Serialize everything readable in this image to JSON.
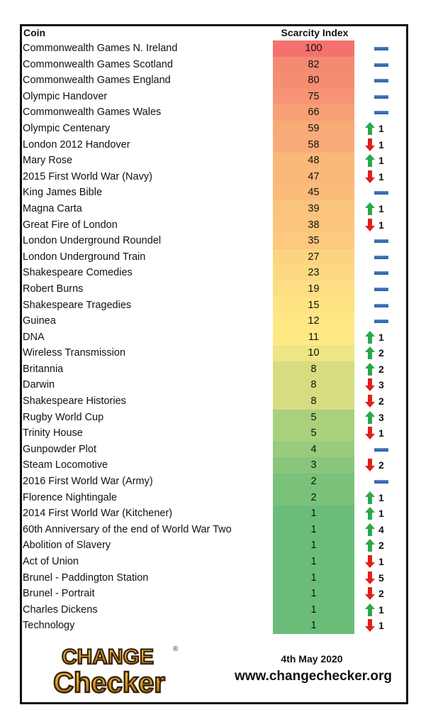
{
  "header": {
    "coin_label": "Coin",
    "scarcity_label": "Scarcity Index"
  },
  "colors": {
    "up": "#2aa84a",
    "down": "#e0201b",
    "same": "#3b6fb6"
  },
  "rows": [
    {
      "name": "Commonwealth Games N. Ireland",
      "score": "100",
      "change": "same",
      "amount": "",
      "color": "#f4716f"
    },
    {
      "name": "Commonwealth Games Scotland",
      "score": "82",
      "change": "same",
      "amount": "",
      "color": "#f58a72"
    },
    {
      "name": "Commonwealth Games England",
      "score": "80",
      "change": "same",
      "amount": "",
      "color": "#f58d73"
    },
    {
      "name": "Olympic Handover",
      "score": "75",
      "change": "same",
      "amount": "",
      "color": "#f69474"
    },
    {
      "name": "Commonwealth Games Wales",
      "score": "66",
      "change": "same",
      "amount": "",
      "color": "#f7a076"
    },
    {
      "name": "Olympic Centenary",
      "score": "59",
      "change": "up",
      "amount": "1",
      "color": "#f8aa77"
    },
    {
      "name": "London 2012 Handover",
      "score": "58",
      "change": "down",
      "amount": "1",
      "color": "#f8ab78"
    },
    {
      "name": "Mary Rose",
      "score": "48",
      "change": "up",
      "amount": "1",
      "color": "#fab87a"
    },
    {
      "name": "2015 First World War (Navy)",
      "score": "47",
      "change": "down",
      "amount": "1",
      "color": "#fab97a"
    },
    {
      "name": "King James Bible",
      "score": "45",
      "change": "same",
      "amount": "",
      "color": "#fabc7b"
    },
    {
      "name": "Magna Carta",
      "score": "39",
      "change": "up",
      "amount": "1",
      "color": "#fbc47c"
    },
    {
      "name": "Great Fire of London",
      "score": "38",
      "change": "down",
      "amount": "1",
      "color": "#fbc57d"
    },
    {
      "name": "London Underground Roundel",
      "score": "35",
      "change": "same",
      "amount": "",
      "color": "#fcc97d"
    },
    {
      "name": "London Underground Train",
      "score": "27",
      "change": "same",
      "amount": "",
      "color": "#fcd47f"
    },
    {
      "name": "Shakespeare Comedies",
      "score": "23",
      "change": "same",
      "amount": "",
      "color": "#fdd981"
    },
    {
      "name": "Robert Burns",
      "score": "19",
      "change": "same",
      "amount": "",
      "color": "#fdde82"
    },
    {
      "name": "Shakespeare Tragedies",
      "score": "15",
      "change": "same",
      "amount": "",
      "color": "#fee383"
    },
    {
      "name": "Guinea",
      "score": "12",
      "change": "same",
      "amount": "",
      "color": "#fee784"
    },
    {
      "name": "DNA",
      "score": "11",
      "change": "up",
      "amount": "1",
      "color": "#fee984"
    },
    {
      "name": "Wireless Transmission",
      "score": "10",
      "change": "up",
      "amount": "2",
      "color": "#eee584"
    },
    {
      "name": "Britannia",
      "score": "8",
      "change": "up",
      "amount": "2",
      "color": "#d6dd80"
    },
    {
      "name": "Darwin",
      "score": "8",
      "change": "down",
      "amount": "3",
      "color": "#d6dd80"
    },
    {
      "name": "Shakespeare Histories",
      "score": "8",
      "change": "down",
      "amount": "2",
      "color": "#d6dd80"
    },
    {
      "name": "Rugby World Cup",
      "score": "5",
      "change": "up",
      "amount": "3",
      "color": "#a8d07d"
    },
    {
      "name": "Trinity House",
      "score": "5",
      "change": "down",
      "amount": "1",
      "color": "#a8d07d"
    },
    {
      "name": "Gunpowder Plot",
      "score": "4",
      "change": "same",
      "amount": "",
      "color": "#98cb7c"
    },
    {
      "name": "Steam Locomotive",
      "score": "3",
      "change": "down",
      "amount": "2",
      "color": "#89c67b"
    },
    {
      "name": "2016 First World War (Army)",
      "score": "2",
      "change": "same",
      "amount": "",
      "color": "#7ac17a"
    },
    {
      "name": "Florence Nightingale",
      "score": "2",
      "change": "up",
      "amount": "1",
      "color": "#7ac17a"
    },
    {
      "name": "2014 First World War (Kitchener)",
      "score": "1",
      "change": "up",
      "amount": "1",
      "color": "#6abd79"
    },
    {
      "name": "60th Anniversary of the end of World War Two",
      "score": "1",
      "change": "up",
      "amount": "4",
      "color": "#6abd79"
    },
    {
      "name": "Abolition of Slavery",
      "score": "1",
      "change": "up",
      "amount": "2",
      "color": "#6abd79"
    },
    {
      "name": "Act of Union",
      "score": "1",
      "change": "down",
      "amount": "1",
      "color": "#6abd79"
    },
    {
      "name": "Brunel - Paddington Station",
      "score": "1",
      "change": "down",
      "amount": "5",
      "color": "#6abd79"
    },
    {
      "name": "Brunel - Portrait",
      "score": "1",
      "change": "down",
      "amount": "2",
      "color": "#6abd79"
    },
    {
      "name": "Charles Dickens",
      "score": "1",
      "change": "up",
      "amount": "1",
      "color": "#6abd79"
    },
    {
      "name": "Technology",
      "score": "1",
      "change": "down",
      "amount": "1",
      "color": "#6abd79"
    }
  ],
  "footer": {
    "logo_line1": "CHANGE",
    "logo_line2": "Checker",
    "logo_mark": "®",
    "date": "4th May 2020",
    "website": "www.changechecker.org"
  }
}
